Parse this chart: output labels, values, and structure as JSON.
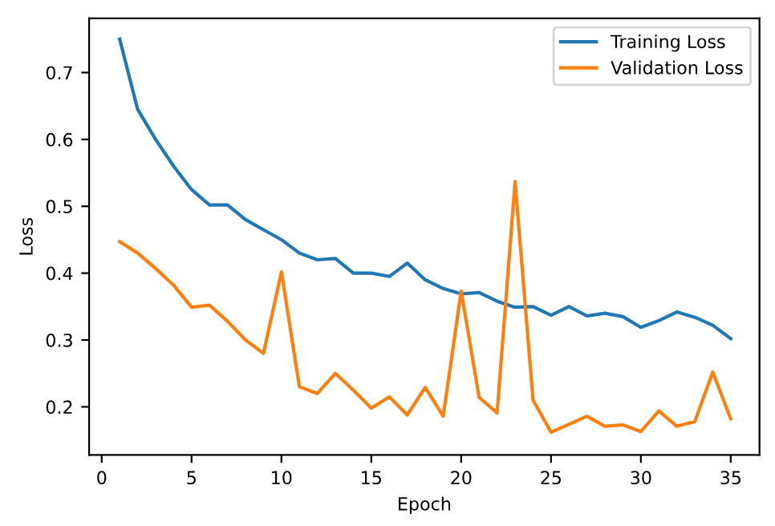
{
  "chart_data": {
    "type": "line",
    "xlabel": "Epoch",
    "ylabel": "Loss",
    "x": [
      1,
      2,
      3,
      4,
      5,
      6,
      7,
      8,
      9,
      10,
      11,
      12,
      13,
      14,
      15,
      16,
      17,
      18,
      19,
      20,
      21,
      22,
      23,
      24,
      25,
      26,
      27,
      28,
      29,
      30,
      31,
      32,
      33,
      34,
      35
    ],
    "series": [
      {
        "name": "Training Loss",
        "color": "#1f77b4",
        "values": [
          0.75,
          0.645,
          0.6,
          0.56,
          0.525,
          0.502,
          0.502,
          0.48,
          0.465,
          0.45,
          0.43,
          0.42,
          0.422,
          0.4,
          0.4,
          0.395,
          0.415,
          0.39,
          0.377,
          0.369,
          0.371,
          0.358,
          0.349,
          0.35,
          0.337,
          0.35,
          0.336,
          0.34,
          0.335,
          0.319,
          0.329,
          0.342,
          0.334,
          0.322,
          0.302
        ]
      },
      {
        "name": "Validation Loss",
        "color": "#ff7f0e",
        "values": [
          0.447,
          0.43,
          0.407,
          0.382,
          0.349,
          0.352,
          0.328,
          0.3,
          0.28,
          0.402,
          0.23,
          0.22,
          0.25,
          0.225,
          0.198,
          0.215,
          0.188,
          0.229,
          0.186,
          0.373,
          0.214,
          0.191,
          0.537,
          0.21,
          0.162,
          0.174,
          0.186,
          0.171,
          0.173,
          0.163,
          0.194,
          0.171,
          0.178,
          0.252,
          0.182
        ]
      }
    ],
    "xlim": [
      -0.7,
      36.6
    ],
    "ylim": [
      0.128,
      0.781
    ],
    "xticks": [
      0,
      5,
      10,
      15,
      20,
      25,
      30,
      35
    ],
    "yticks": [
      0.2,
      0.3,
      0.4,
      0.5,
      0.6,
      0.7
    ],
    "grid": false,
    "legend": "top right"
  }
}
